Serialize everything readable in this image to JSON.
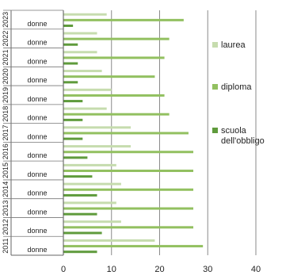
{
  "chart_data": {
    "type": "bar",
    "orientation": "horizontal",
    "stacked": false,
    "categories": [
      "2011",
      "2012",
      "2013",
      "2014",
      "2015",
      "2016",
      "2017",
      "2018",
      "2019",
      "2020",
      "2021",
      "2022",
      "2023"
    ],
    "subcategory_label": "donne",
    "series": [
      {
        "name": "laurea",
        "color": "#c6dcae",
        "values": [
          19,
          12,
          11,
          12,
          11,
          14,
          14,
          9,
          10,
          8,
          7,
          7,
          9
        ]
      },
      {
        "name": "diploma",
        "color": "#92c060",
        "values": [
          29,
          27,
          27,
          27,
          27,
          27,
          26,
          22,
          21,
          19,
          21,
          22,
          25
        ]
      },
      {
        "name": "scuola dell'obbligo",
        "color": "#5f9b3c",
        "values": [
          7,
          8,
          7,
          7,
          6,
          5,
          4,
          4,
          4,
          3,
          3,
          3,
          2
        ]
      }
    ],
    "xlim": [
      0,
      40
    ],
    "xticks": [
      "0",
      "10",
      "20",
      "30",
      "40"
    ],
    "grid": "vertical",
    "legend": "right"
  }
}
